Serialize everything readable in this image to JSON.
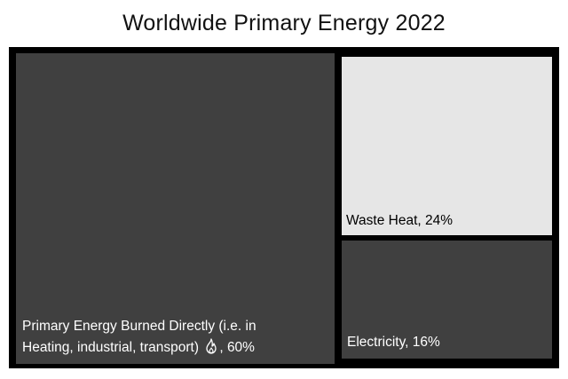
{
  "chart_data": {
    "type": "treemap",
    "title": "Worldwide Primary Energy 2022",
    "items": [
      {
        "label": "Primary Energy Burned Directly (i.e. in Heating, industrial, transport)",
        "value": 60,
        "value_text": ", 60%",
        "icon": "fire-icon",
        "color": "#404040",
        "text_color": "#ffffff"
      },
      {
        "label": "Waste Heat",
        "value": 24,
        "value_text": ", 24%",
        "color": "#e6e6e6",
        "text_color": "#000000"
      },
      {
        "label": "Electricity",
        "value": 16,
        "value_text": ", 16%",
        "color": "#404040",
        "text_color": "#ffffff"
      }
    ],
    "border_color": "#000000"
  }
}
